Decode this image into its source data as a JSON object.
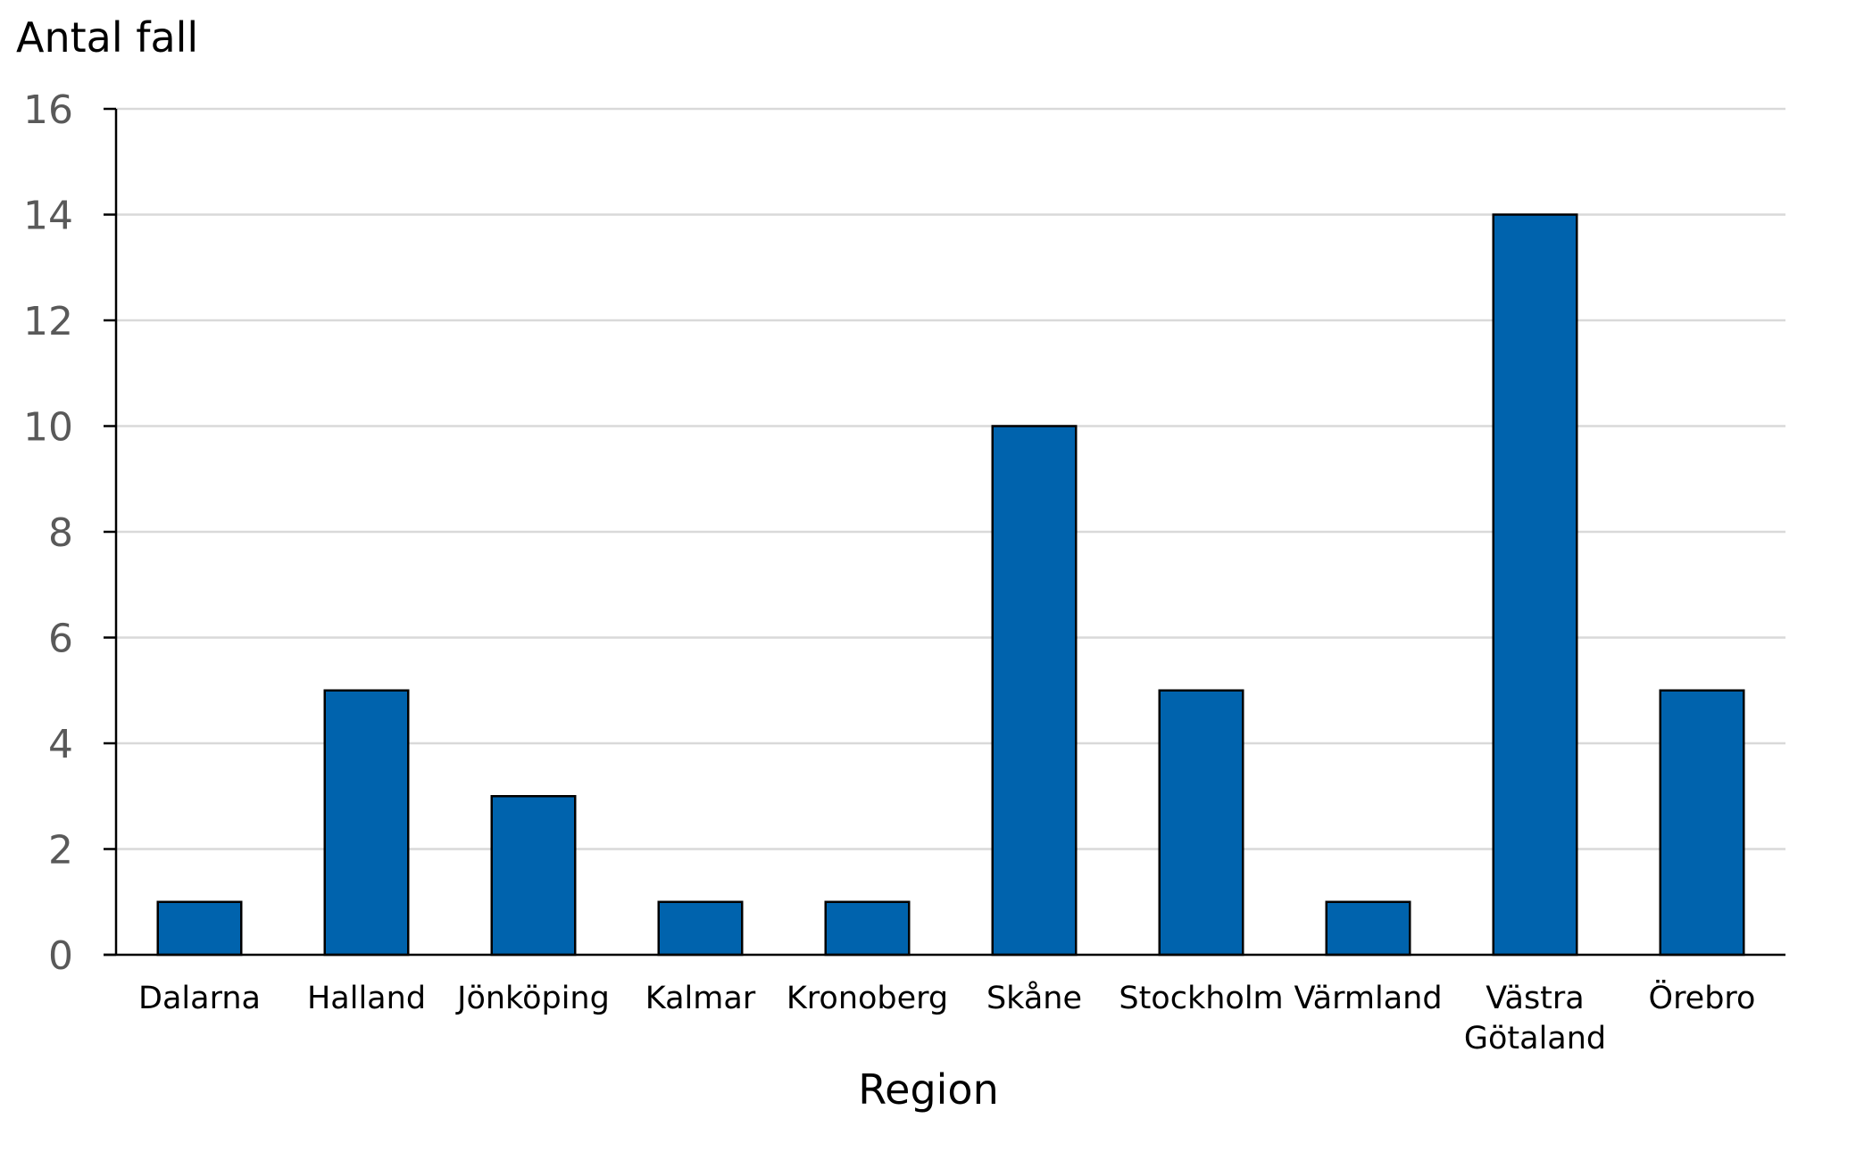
{
  "chart_data": {
    "type": "bar",
    "title": "",
    "ylabel": "Antal fall",
    "xlabel": "Region",
    "categories": [
      "Dalarna",
      "Halland",
      "Jönköping",
      "Kalmar",
      "Kronoberg",
      "Skåne",
      "Stockholm",
      "Värmland",
      "Västra Götaland",
      "Örebro"
    ],
    "category_lines": [
      [
        "Dalarna"
      ],
      [
        "Halland"
      ],
      [
        "Jönköping"
      ],
      [
        "Kalmar"
      ],
      [
        "Kronoberg"
      ],
      [
        "Skåne"
      ],
      [
        "Stockholm"
      ],
      [
        "Värmland"
      ],
      [
        "Västra",
        "Götaland"
      ],
      [
        "Örebro"
      ]
    ],
    "values": [
      1,
      5,
      3,
      1,
      1,
      10,
      5,
      1,
      14,
      5
    ],
    "ylim": [
      0,
      16
    ],
    "yticks": [
      0,
      2,
      4,
      6,
      8,
      10,
      12,
      14,
      16
    ],
    "grid": true,
    "legend": "none",
    "colors": {
      "bar": "#0063ad",
      "bar_border": "#000000",
      "grid": "#d9d9d9",
      "axis": "#000000"
    }
  }
}
